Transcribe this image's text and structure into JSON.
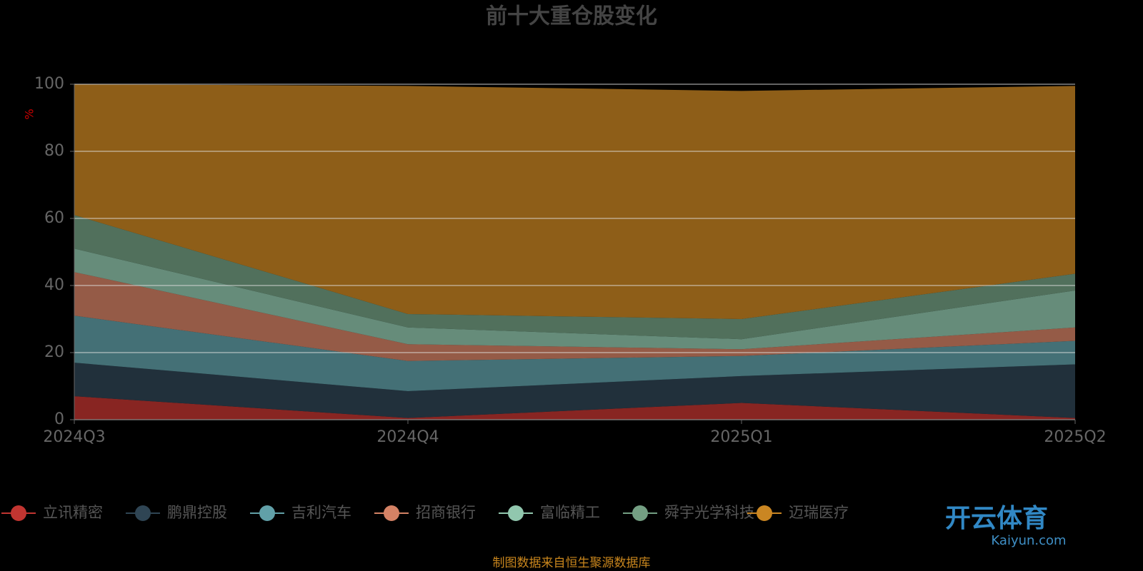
{
  "chart_data": {
    "type": "stacked-area",
    "title": "前十大重仓股变化",
    "y_label": "%",
    "categories": [
      "2024Q3",
      "2024Q4",
      "2025Q1",
      "2025Q2"
    ],
    "series": [
      {
        "name": "立讯精密",
        "color": "#c23531",
        "values": [
          7,
          0.5,
          5,
          0.5
        ]
      },
      {
        "name": "鹏鼎控股",
        "color": "#2f4554",
        "values": [
          10,
          8,
          8,
          16
        ]
      },
      {
        "name": "吉利汽车",
        "color": "#61a0a8",
        "values": [
          14,
          9,
          6,
          7
        ]
      },
      {
        "name": "招商银行",
        "color": "#d48265",
        "values": [
          13,
          5,
          2,
          4
        ]
      },
      {
        "name": "富临精工",
        "color": "#91c7ae",
        "values": [
          7,
          5,
          3,
          11
        ]
      },
      {
        "name": "舜宇光学科技",
        "color": "#749f83",
        "values": [
          10,
          4,
          6,
          5
        ]
      },
      {
        "name": "迈瑞医疗",
        "color": "#ca8622",
        "values": [
          39,
          68,
          68,
          56
        ]
      }
    ],
    "ylim": [
      0,
      100
    ],
    "yticks": [
      0,
      20,
      40,
      60,
      80,
      100
    ],
    "grid": true,
    "legend": "bottom",
    "source": "制图数据来自恒生聚源数据库"
  },
  "watermark": {
    "text": "开云体育",
    "subtext": "Kaiyun.com"
  }
}
